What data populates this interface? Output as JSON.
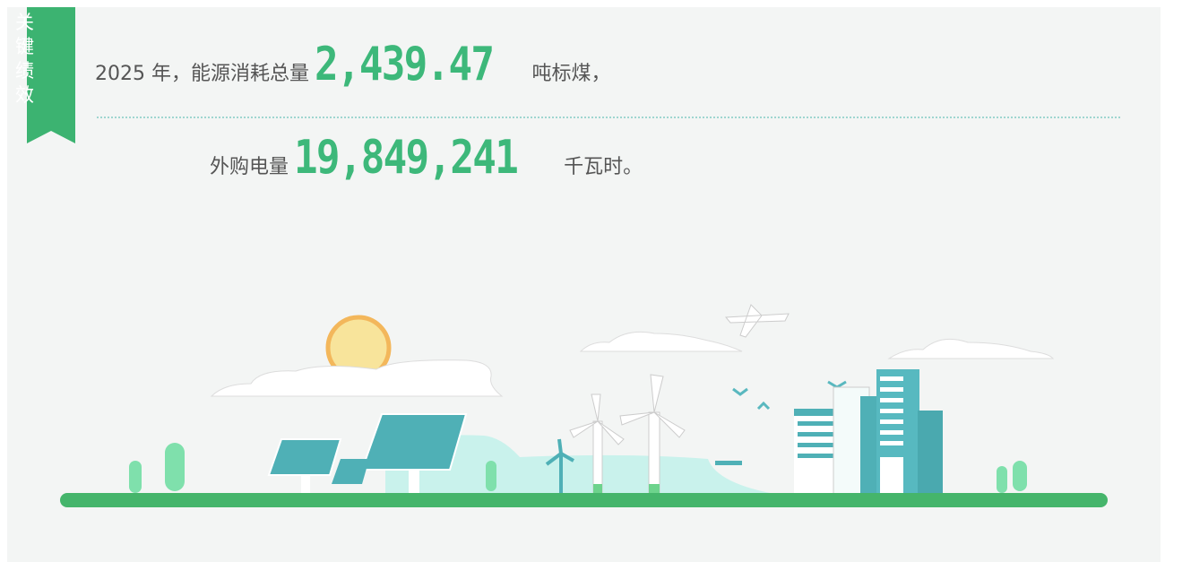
{
  "badge": "关键绩效",
  "line1": {
    "prefix": "2025 年，能源消耗总量",
    "number": "2,439.47",
    "suffix": "吨标煤，"
  },
  "line2": {
    "prefix": "外购电量",
    "number": "19,849,241",
    "suffix": "千瓦时。"
  }
}
